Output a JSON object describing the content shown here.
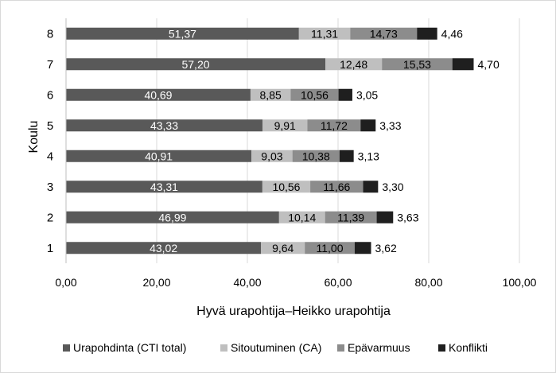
{
  "chart_data": {
    "type": "bar",
    "orientation": "horizontal",
    "stacked": true,
    "categories": [
      "1",
      "2",
      "3",
      "4",
      "5",
      "6",
      "7",
      "8"
    ],
    "series": [
      {
        "name": "Urapohdinta (CTI total)",
        "values": [
          43.02,
          46.99,
          43.31,
          40.91,
          43.33,
          40.69,
          57.2,
          51.37
        ],
        "labels": [
          "43,02",
          "46,99",
          "43,31",
          "40,91",
          "43,33",
          "40,69",
          "57,20",
          "51,37"
        ],
        "color": "#595959",
        "label_color": "#ffffff"
      },
      {
        "name": "Sitoutuminen (CA)",
        "values": [
          9.64,
          10.14,
          10.56,
          9.03,
          9.91,
          8.85,
          12.48,
          11.31
        ],
        "labels": [
          "9,64",
          "10,14",
          "10,56",
          "9,03",
          "9,91",
          "8,85",
          "12,48",
          "11,31"
        ],
        "color": "#bfbfbf",
        "label_color": "#000000"
      },
      {
        "name": "Epävarmuus",
        "values": [
          11.0,
          11.39,
          11.66,
          10.38,
          11.72,
          10.56,
          15.53,
          14.73
        ],
        "labels": [
          "11,00",
          "11,39",
          "11,66",
          "10,38",
          "11,72",
          "10,56",
          "15,53",
          "14,73"
        ],
        "color": "#8c8c8c",
        "label_color": "#000000"
      },
      {
        "name": "Konflikti",
        "values": [
          3.62,
          3.63,
          3.3,
          3.13,
          3.33,
          3.05,
          4.7,
          4.46
        ],
        "labels": [
          "3,62",
          "3,63",
          "3,30",
          "3,13",
          "3,33",
          "3,05",
          "4,70",
          "4,46"
        ],
        "color": "#1f1f1f",
        "label_color": "#000000"
      }
    ],
    "xlim": [
      0,
      100
    ],
    "xticks": [
      0,
      20,
      40,
      60,
      80,
      100
    ],
    "xtick_labels": [
      "0,00",
      "20,00",
      "40,00",
      "60,00",
      "80,00",
      "100,00"
    ],
    "xlabel": "Hyvä urapohtija–Heikko urapohtija",
    "ylabel": "Koulu",
    "title": "",
    "grid": true,
    "legend_position": "bottom"
  }
}
